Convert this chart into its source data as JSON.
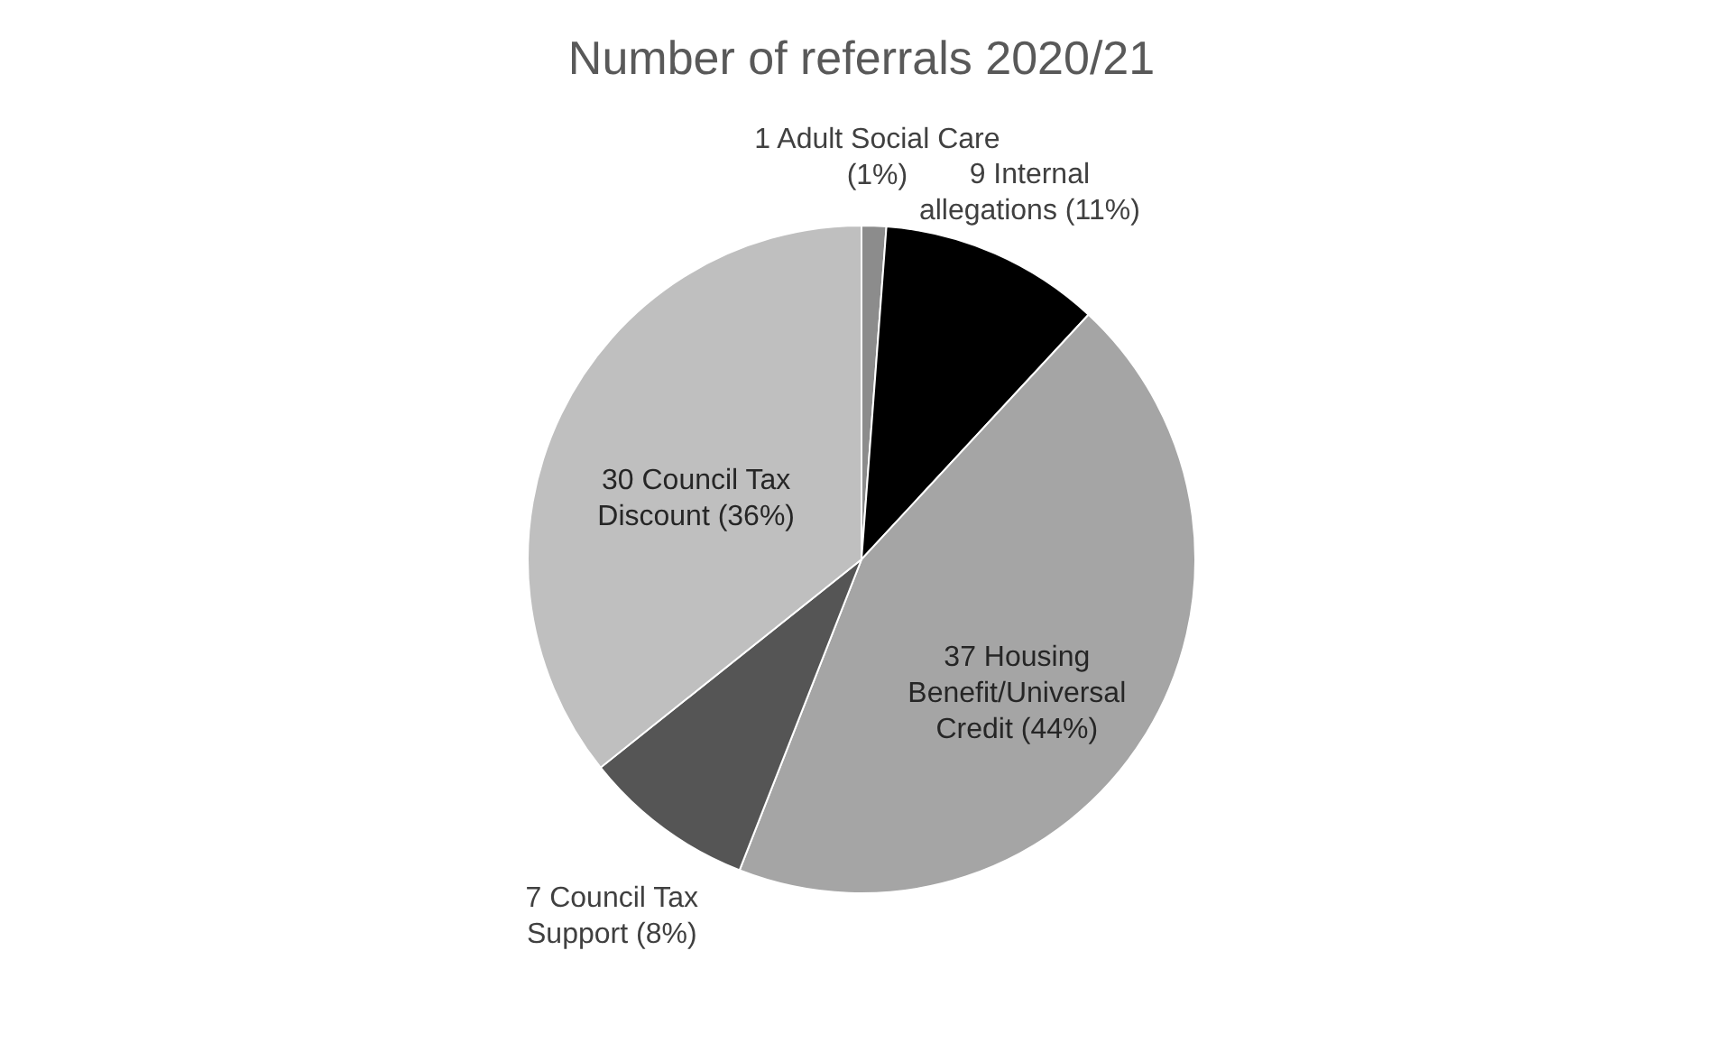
{
  "chart_data": {
    "type": "pie",
    "title": "Number of referrals 2020/21",
    "categories": [
      "1 Adult Social Care (1%)",
      "9 Internal allegations (11%)",
      "37 Housing Benefit/Universal Credit (44%)",
      "7 Council Tax Support (8%)",
      "30 Council Tax Discount (36%)"
    ],
    "values": [
      1,
      9,
      37,
      7,
      30
    ],
    "colors": [
      "#8c8c8c",
      "#000000",
      "#a5a5a5",
      "#555555",
      "#bfbfbf"
    ]
  }
}
